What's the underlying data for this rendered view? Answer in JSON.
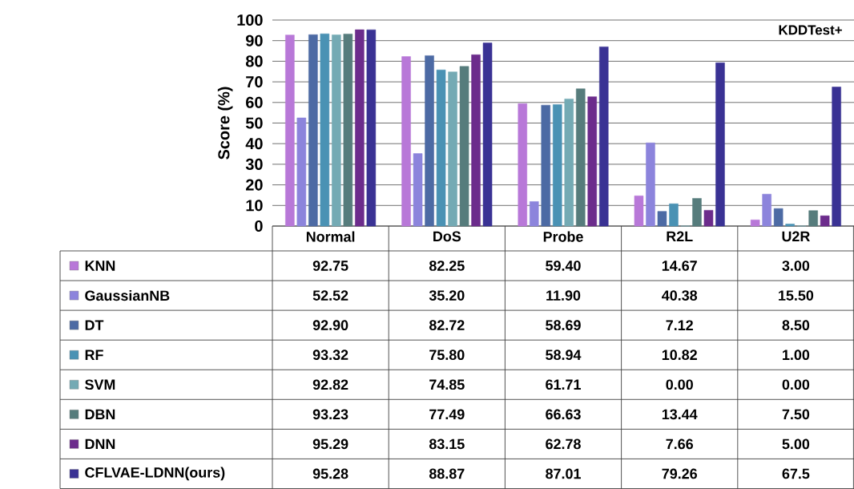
{
  "chart_data": {
    "type": "bar",
    "title": "KDDTest+",
    "ylabel": "Score (%)",
    "categories": [
      "Normal",
      "DoS",
      "Probe",
      "R2L",
      "U2R"
    ],
    "ylim": [
      0,
      100
    ],
    "yticks": [
      0,
      10,
      20,
      30,
      40,
      50,
      60,
      70,
      80,
      90,
      100
    ],
    "grid": "y",
    "legend": "bottom",
    "series": [
      {
        "name": "KNN",
        "color": "#b878d8",
        "values": [
          92.75,
          82.25,
          59.4,
          14.67,
          3.0
        ],
        "value_labels": [
          "92.75",
          "82.25",
          "59.40",
          "14.67",
          "3.00"
        ]
      },
      {
        "name": "GaussianNB",
        "color": "#8c84dc",
        "values": [
          52.52,
          35.2,
          11.9,
          40.38,
          15.5
        ],
        "value_labels": [
          "52.52",
          "35.20",
          "11.90",
          "40.38",
          "15.50"
        ]
      },
      {
        "name": "DT",
        "color": "#4c6aa4",
        "values": [
          92.9,
          82.72,
          58.69,
          7.12,
          8.5
        ],
        "value_labels": [
          "92.90",
          "82.72",
          "58.69",
          "7.12",
          "8.50"
        ]
      },
      {
        "name": "RF",
        "color": "#4a92b4",
        "values": [
          93.32,
          75.8,
          58.94,
          10.82,
          1.0
        ],
        "value_labels": [
          "93.32",
          "75.80",
          "58.94",
          "10.82",
          "1.00"
        ]
      },
      {
        "name": "SVM",
        "color": "#74aab4",
        "values": [
          92.82,
          74.85,
          61.71,
          0.0,
          0.0
        ],
        "value_labels": [
          "92.82",
          "74.85",
          "61.71",
          "0.00",
          "0.00"
        ]
      },
      {
        "name": "DBN",
        "color": "#567c7c",
        "values": [
          93.23,
          77.49,
          66.63,
          13.44,
          7.5
        ],
        "value_labels": [
          "93.23",
          "77.49",
          "66.63",
          "13.44",
          "7.50"
        ]
      },
      {
        "name": "DNN",
        "color": "#6c2c8c",
        "values": [
          95.29,
          83.15,
          62.78,
          7.66,
          5.0
        ],
        "value_labels": [
          "95.29",
          "83.15",
          "62.78",
          "7.66",
          "5.00"
        ]
      },
      {
        "name": "CFLVAE-LDNN(ours)",
        "color": "#3a3294",
        "values": [
          95.28,
          88.87,
          87.01,
          79.26,
          67.5
        ],
        "value_labels": [
          "95.28",
          "88.87",
          "87.01",
          "79.26",
          "67.5"
        ]
      }
    ]
  }
}
